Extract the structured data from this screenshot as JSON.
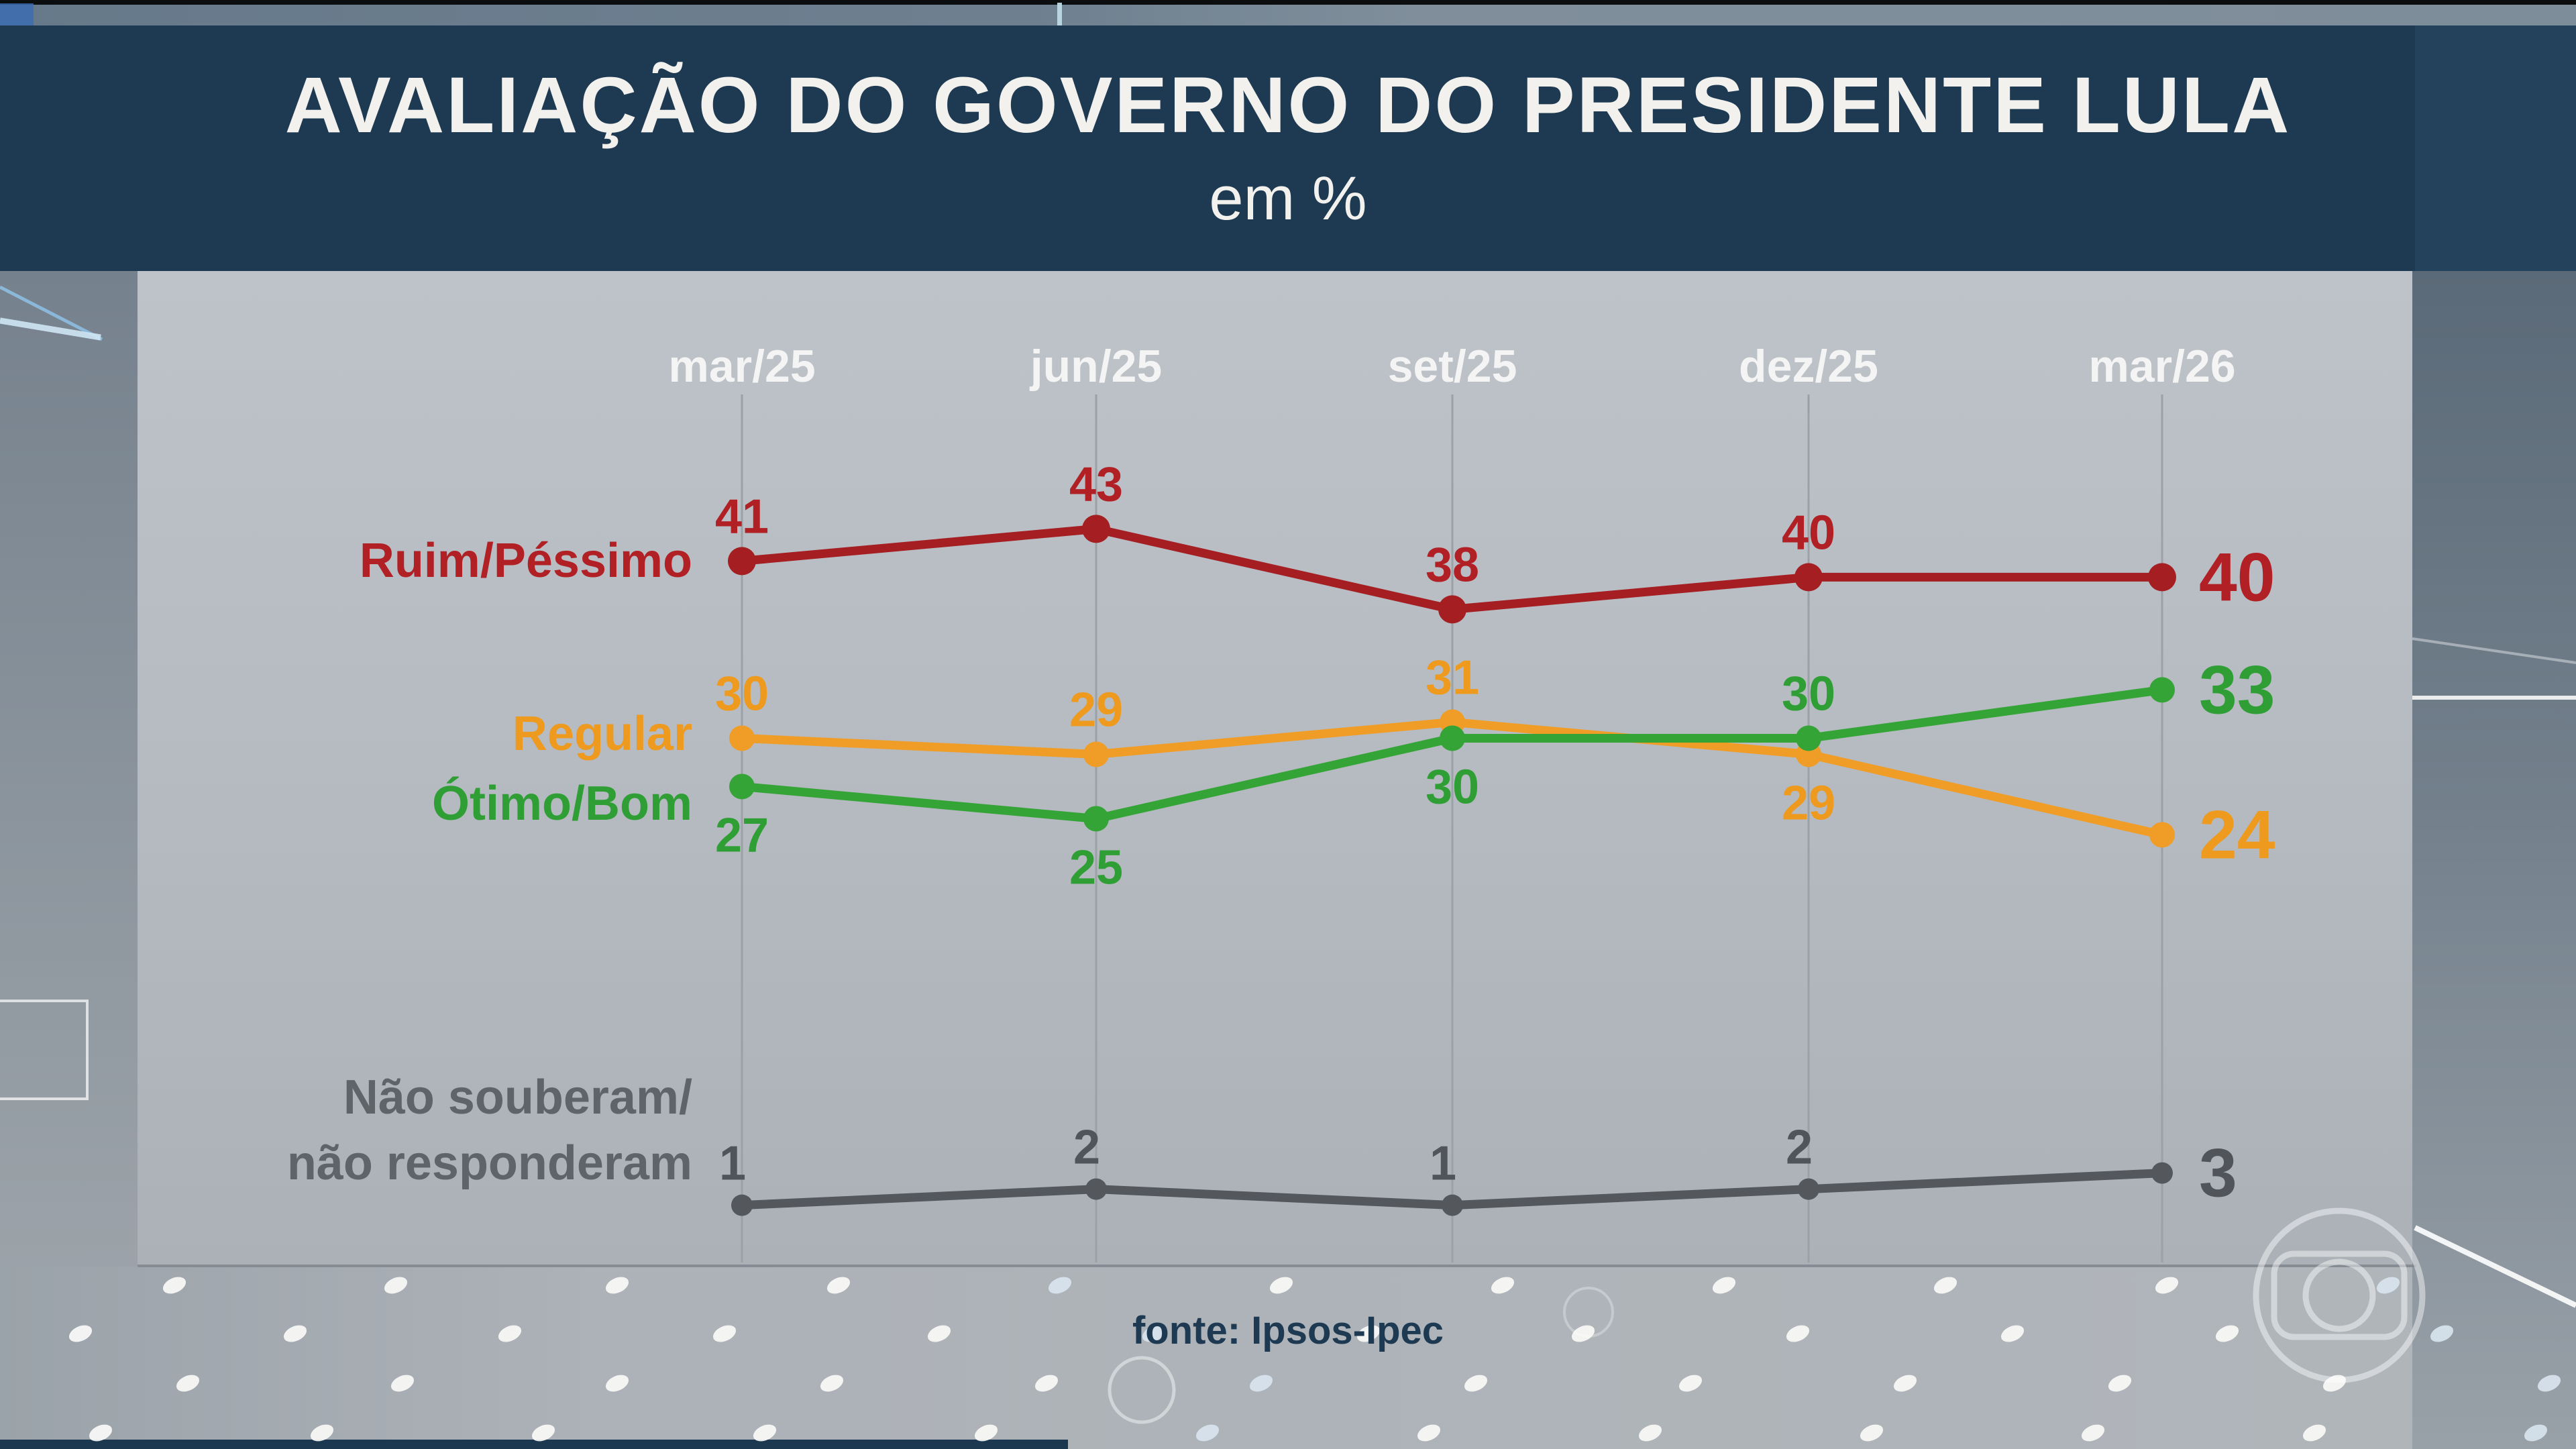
{
  "header": {
    "title": "AVALIAÇÃO DO GOVERNO DO PRESIDENTE LULA",
    "subtitle": "em %"
  },
  "footer": {
    "source": "fonte: Ipsos-Ipec"
  },
  "colors": {
    "header_bg": "#1e3a52",
    "header_text": "#f2f1ed",
    "panel_bg": "#b5bbc0",
    "grid_line": "#9ca1a6",
    "month_label": "#f3f4f3",
    "ruim_pessimo": "#a81f23",
    "regular": "#f09d28",
    "otimo_bom": "#35a437",
    "nao_souberam": "#54575b",
    "source_text": "#1d3a52"
  },
  "chart_data": {
    "type": "line",
    "title": "AVALIAÇÃO DO GOVERNO DO PRESIDENTE LULA",
    "unit": "em %",
    "source": "fonte: Ipsos-Ipec",
    "categories": [
      "mar/25",
      "jun/25",
      "set/25",
      "dez/25",
      "mar/26"
    ],
    "ylim": [
      0,
      50
    ],
    "grid": "vertical-only",
    "legend_position": "left of first data points",
    "series": [
      {
        "name_lines": [
          "Ruim/Péssimo"
        ],
        "line_color": "#a51e22",
        "label_color": "#b02025",
        "values": [
          41,
          43,
          38,
          40,
          40
        ],
        "label_side": [
          "above",
          "above",
          "above",
          "above",
          "end"
        ]
      },
      {
        "name_lines": [
          "Regular"
        ],
        "line_color": "#f09d28",
        "label_color": "#ee9a1e",
        "values": [
          30,
          29,
          31,
          29,
          24
        ],
        "label_side": [
          "above",
          "above",
          "above",
          "below",
          "end"
        ]
      },
      {
        "name_lines": [
          "Ótimo/Bom"
        ],
        "line_color": "#35a437",
        "label_color": "#2f9f35",
        "values": [
          27,
          25,
          30,
          30,
          33
        ],
        "label_side": [
          "below",
          "below",
          "below",
          "above",
          "end"
        ]
      },
      {
        "name_lines": [
          "Não souberam/",
          "não responderam"
        ],
        "line_color": "#54575b",
        "label_color": "#515458",
        "name_color": "#5f6468",
        "values": [
          1,
          2,
          1,
          2,
          3
        ],
        "label_side": [
          "above",
          "above",
          "above",
          "above",
          "end"
        ]
      }
    ]
  }
}
